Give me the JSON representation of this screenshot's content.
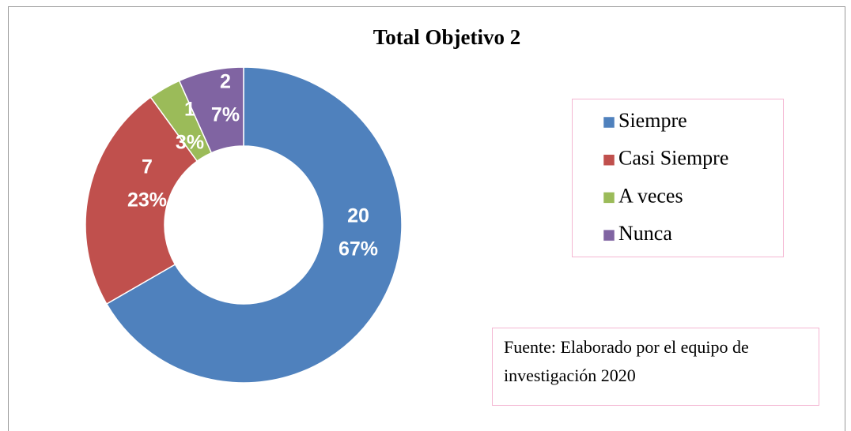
{
  "chart_data": {
    "type": "donut",
    "title": "Total Objetivo 2",
    "categories": [
      "Siempre",
      "Casi Siempre",
      "A veces",
      "Nunca"
    ],
    "values": [
      20,
      7,
      1,
      2
    ],
    "percent_labels": [
      "67%",
      "23%",
      "3%",
      "7%"
    ],
    "colors": [
      "#4f81bd",
      "#c0504d",
      "#9bbb59",
      "#8064a2"
    ],
    "legend": "right",
    "source": [
      "Fuente: Elaborado por el equipo de",
      "investigación 2020"
    ]
  }
}
